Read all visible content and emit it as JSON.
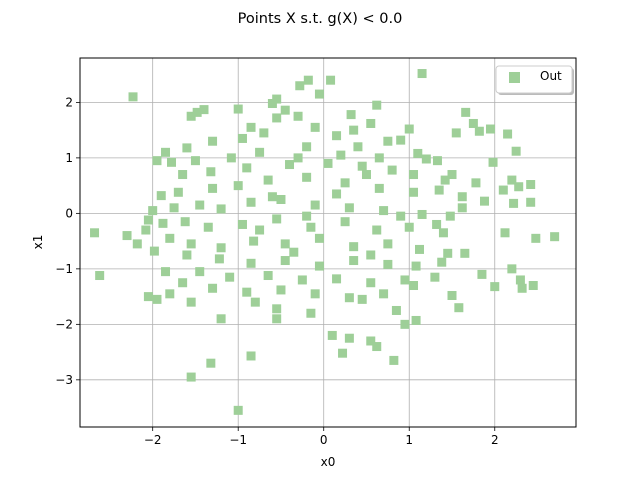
{
  "chart_data": {
    "type": "scatter",
    "title": "Points X s.t. g(X) < 0.0",
    "xlabel": "x0",
    "ylabel": "x1",
    "xlim": [
      -2.85,
      2.95
    ],
    "ylim": [
      -3.85,
      2.8
    ],
    "xticks": [
      -2,
      -1,
      0,
      1,
      2
    ],
    "yticks": [
      -3,
      -2,
      -1,
      0,
      1,
      2
    ],
    "xtick_labels": [
      "−2",
      "−1",
      "0",
      "1",
      "2"
    ],
    "ytick_labels": [
      "−3",
      "−2",
      "−1",
      "0",
      "1",
      "2"
    ],
    "grid": true,
    "legend_position": "upper right",
    "marker": "square",
    "series": [
      {
        "name": "Out",
        "color": "#9ecf98",
        "points": [
          [
            -2.23,
            2.1
          ],
          [
            1.15,
            2.52
          ],
          [
            0.08,
            2.4
          ],
          [
            -0.18,
            2.4
          ],
          [
            -0.55,
            2.06
          ],
          [
            -0.28,
            2.3
          ],
          [
            -0.6,
            1.98
          ],
          [
            -0.05,
            2.15
          ],
          [
            0.62,
            1.95
          ],
          [
            -1.0,
            1.88
          ],
          [
            -0.45,
            1.86
          ],
          [
            0.32,
            1.78
          ],
          [
            -1.55,
            1.75
          ],
          [
            -1.4,
            1.87
          ],
          [
            -1.48,
            1.82
          ],
          [
            1.66,
            1.82
          ],
          [
            1.75,
            1.62
          ],
          [
            1.95,
            1.52
          ],
          [
            2.15,
            1.43
          ],
          [
            1.55,
            1.45
          ],
          [
            1.82,
            1.48
          ],
          [
            -0.85,
            1.55
          ],
          [
            0.35,
            1.5
          ],
          [
            1.0,
            1.52
          ],
          [
            -0.1,
            1.55
          ],
          [
            0.55,
            1.62
          ],
          [
            -1.6,
            1.18
          ],
          [
            -1.3,
            1.3
          ],
          [
            -0.55,
            1.72
          ],
          [
            0.9,
            1.32
          ],
          [
            2.25,
            1.12
          ],
          [
            1.1,
            1.08
          ],
          [
            -1.85,
            1.1
          ],
          [
            -1.95,
            0.95
          ],
          [
            -1.78,
            0.92
          ],
          [
            -1.5,
            0.95
          ],
          [
            -1.08,
            1.0
          ],
          [
            -0.75,
            1.1
          ],
          [
            -0.2,
            1.2
          ],
          [
            0.2,
            1.05
          ],
          [
            0.65,
            1.0
          ],
          [
            1.2,
            0.98
          ],
          [
            1.33,
            0.95
          ],
          [
            1.98,
            0.92
          ],
          [
            1.5,
            0.7
          ],
          [
            -1.65,
            0.7
          ],
          [
            -1.32,
            0.75
          ],
          [
            -0.9,
            0.82
          ],
          [
            -0.4,
            0.88
          ],
          [
            0.05,
            0.9
          ],
          [
            0.45,
            0.85
          ],
          [
            0.8,
            0.78
          ],
          [
            1.05,
            0.7
          ],
          [
            1.42,
            0.6
          ],
          [
            1.78,
            0.55
          ],
          [
            2.2,
            0.6
          ],
          [
            2.28,
            0.48
          ],
          [
            2.1,
            0.42
          ],
          [
            2.42,
            0.52
          ],
          [
            -1.9,
            0.32
          ],
          [
            -1.7,
            0.38
          ],
          [
            -1.3,
            0.45
          ],
          [
            -1.0,
            0.5
          ],
          [
            -0.65,
            0.6
          ],
          [
            -0.2,
            0.65
          ],
          [
            0.25,
            0.55
          ],
          [
            0.65,
            0.45
          ],
          [
            1.05,
            0.38
          ],
          [
            1.35,
            0.42
          ],
          [
            1.62,
            0.3
          ],
          [
            1.88,
            0.22
          ],
          [
            2.22,
            0.18
          ],
          [
            2.42,
            0.2
          ],
          [
            -2.0,
            0.05
          ],
          [
            -1.75,
            0.1
          ],
          [
            -1.45,
            0.15
          ],
          [
            -1.2,
            0.08
          ],
          [
            -0.85,
            0.2
          ],
          [
            -0.5,
            0.25
          ],
          [
            -0.1,
            0.15
          ],
          [
            0.3,
            0.1
          ],
          [
            0.7,
            0.05
          ],
          [
            1.15,
            -0.02
          ],
          [
            1.48,
            -0.05
          ],
          [
            1.62,
            0.1
          ],
          [
            -2.05,
            -0.12
          ],
          [
            -1.88,
            -0.18
          ],
          [
            -1.62,
            -0.15
          ],
          [
            -1.35,
            -0.25
          ],
          [
            -0.95,
            -0.2
          ],
          [
            -0.55,
            -0.1
          ],
          [
            -0.15,
            -0.25
          ],
          [
            0.25,
            -0.15
          ],
          [
            0.62,
            -0.3
          ],
          [
            1.0,
            -0.25
          ],
          [
            1.32,
            -0.2
          ],
          [
            1.4,
            -0.35
          ],
          [
            2.12,
            -0.35
          ],
          [
            2.7,
            -0.42
          ],
          [
            2.48,
            -0.45
          ],
          [
            -2.68,
            -0.35
          ],
          [
            -2.3,
            -0.4
          ],
          [
            -2.18,
            -0.55
          ],
          [
            -2.08,
            -0.3
          ],
          [
            -1.8,
            -0.45
          ],
          [
            -1.55,
            -0.55
          ],
          [
            -1.2,
            -0.62
          ],
          [
            -0.82,
            -0.5
          ],
          [
            -0.45,
            -0.55
          ],
          [
            -0.05,
            -0.45
          ],
          [
            0.35,
            -0.6
          ],
          [
            0.75,
            -0.55
          ],
          [
            1.12,
            -0.65
          ],
          [
            1.45,
            -0.72
          ],
          [
            1.65,
            -0.72
          ],
          [
            -1.98,
            -0.68
          ],
          [
            -1.6,
            -0.75
          ],
          [
            -1.22,
            -0.82
          ],
          [
            -0.85,
            -0.9
          ],
          [
            -0.45,
            -0.85
          ],
          [
            -0.05,
            -0.95
          ],
          [
            0.35,
            -0.85
          ],
          [
            0.75,
            -0.92
          ],
          [
            1.08,
            -0.95
          ],
          [
            1.38,
            -0.88
          ],
          [
            -2.62,
            -1.12
          ],
          [
            -1.85,
            -1.05
          ],
          [
            -1.45,
            -1.05
          ],
          [
            -1.1,
            -1.15
          ],
          [
            -0.65,
            -1.12
          ],
          [
            -0.25,
            -1.2
          ],
          [
            0.15,
            -1.18
          ],
          [
            0.55,
            -1.25
          ],
          [
            0.95,
            -1.2
          ],
          [
            1.3,
            -1.15
          ],
          [
            2.2,
            -1.0
          ],
          [
            2.3,
            -1.2
          ],
          [
            1.85,
            -1.1
          ],
          [
            -1.65,
            -1.25
          ],
          [
            -1.3,
            -1.35
          ],
          [
            -0.9,
            -1.42
          ],
          [
            -0.5,
            -1.38
          ],
          [
            -0.1,
            -1.45
          ],
          [
            0.3,
            -1.52
          ],
          [
            0.7,
            -1.45
          ],
          [
            1.05,
            -1.3
          ],
          [
            1.5,
            -1.48
          ],
          [
            2.0,
            -1.32
          ],
          [
            2.32,
            -1.35
          ],
          [
            2.45,
            -1.3
          ],
          [
            -2.05,
            -1.5
          ],
          [
            -1.95,
            -1.55
          ],
          [
            -1.8,
            -1.45
          ],
          [
            -1.55,
            -1.6
          ],
          [
            -0.8,
            -1.6
          ],
          [
            -0.55,
            -1.72
          ],
          [
            -0.15,
            -1.8
          ],
          [
            0.45,
            -1.55
          ],
          [
            0.85,
            -1.75
          ],
          [
            1.58,
            -1.7
          ],
          [
            -0.55,
            -1.9
          ],
          [
            -1.2,
            -1.9
          ],
          [
            0.95,
            -2.0
          ],
          [
            1.08,
            -1.93
          ],
          [
            0.1,
            -2.2
          ],
          [
            0.3,
            -2.25
          ],
          [
            0.55,
            -2.3
          ],
          [
            0.62,
            -2.4
          ],
          [
            0.22,
            -2.52
          ],
          [
            -0.85,
            -2.57
          ],
          [
            0.82,
            -2.65
          ],
          [
            -1.32,
            -2.7
          ],
          [
            -1.55,
            -2.95
          ],
          [
            -1.0,
            -3.55
          ],
          [
            -0.3,
            1.75
          ],
          [
            -0.95,
            1.35
          ],
          [
            -0.7,
            1.45
          ],
          [
            0.15,
            1.4
          ],
          [
            0.75,
            1.3
          ],
          [
            -0.3,
            1.0
          ],
          [
            0.4,
            1.2
          ],
          [
            -0.6,
            0.3
          ],
          [
            0.9,
            -0.05
          ],
          [
            -0.35,
            -0.7
          ],
          [
            0.55,
            -0.75
          ],
          [
            -0.75,
            -0.3
          ],
          [
            0.15,
            0.35
          ],
          [
            -0.2,
            -0.05
          ],
          [
            0.5,
            0.7
          ]
        ]
      }
    ]
  }
}
